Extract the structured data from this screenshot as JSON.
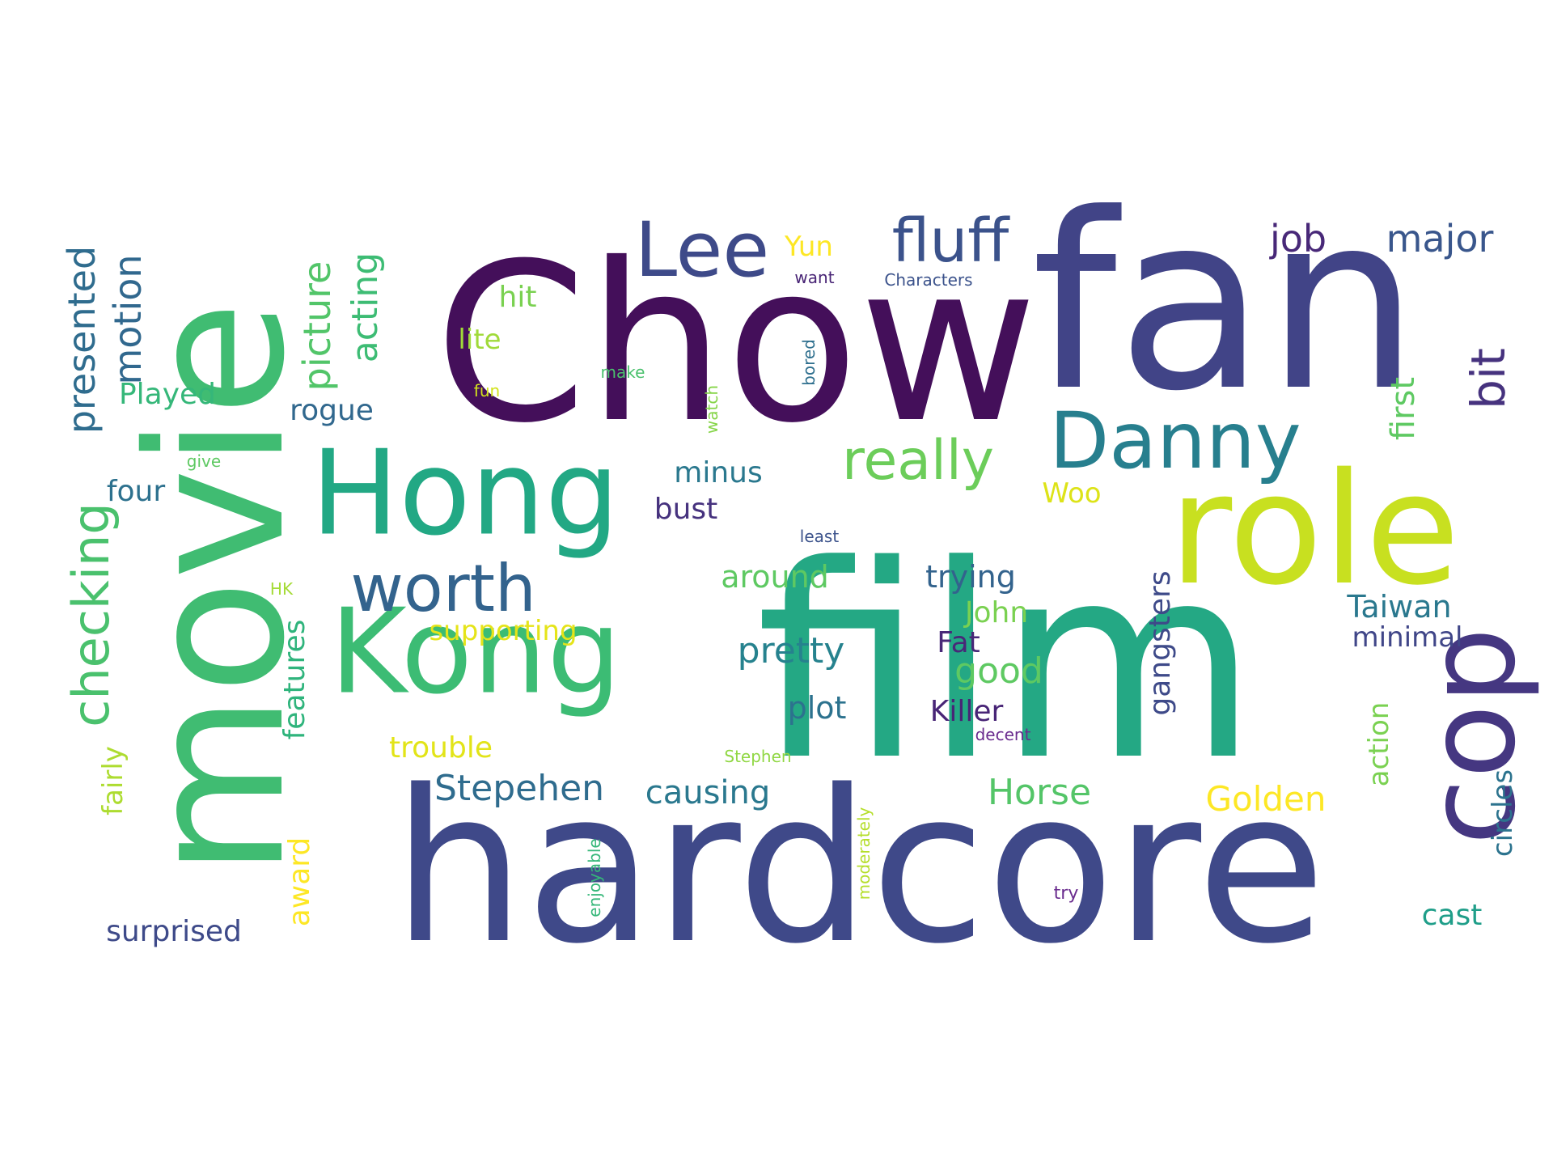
{
  "words": [
    {
      "text": "Chow",
      "color": "#440f5a",
      "rotated": false
    },
    {
      "text": "fan",
      "color": "#414487",
      "rotated": false
    },
    {
      "text": "film",
      "color": "#24a884",
      "rotated": false
    },
    {
      "text": "hardcore",
      "color": "#3f4989",
      "rotated": false
    },
    {
      "text": "movie",
      "color": "#40bc72",
      "rotated": true
    },
    {
      "text": "Hong",
      "color": "#22a884",
      "rotated": false
    },
    {
      "text": "Kong",
      "color": "#3cbc74",
      "rotated": false
    },
    {
      "text": "role",
      "color": "#c8e020",
      "rotated": false
    },
    {
      "text": "cop",
      "color": "#453781",
      "rotated": true
    },
    {
      "text": "Danny",
      "color": "#277f8e",
      "rotated": false
    },
    {
      "text": "Lee",
      "color": "#3e4a89",
      "rotated": false
    },
    {
      "text": "fluff",
      "color": "#3b528b",
      "rotated": false
    },
    {
      "text": "really",
      "color": "#6ccd5a",
      "rotated": false
    },
    {
      "text": "worth",
      "color": "#33638d",
      "rotated": false
    },
    {
      "text": "checking",
      "color": "#4ac16d",
      "rotated": true
    },
    {
      "text": "bit",
      "color": "#46327e",
      "rotated": true
    },
    {
      "text": "job",
      "color": "#482878",
      "rotated": false
    },
    {
      "text": "major",
      "color": "#39568c",
      "rotated": false
    },
    {
      "text": "presented",
      "color": "#2f6c8e",
      "rotated": true
    },
    {
      "text": "motion",
      "color": "#31688e",
      "rotated": true
    },
    {
      "text": "picture",
      "color": "#52c569",
      "rotated": true
    },
    {
      "text": "acting",
      "color": "#3dbc74",
      "rotated": true
    },
    {
      "text": "Yun",
      "color": "#fde725",
      "rotated": false
    },
    {
      "text": "want",
      "color": "#482475",
      "rotated": false
    },
    {
      "text": "Characters",
      "color": "#3b528b",
      "rotated": false
    },
    {
      "text": "hit",
      "color": "#7ad151",
      "rotated": false
    },
    {
      "text": "lite",
      "color": "#a0da39",
      "rotated": false
    },
    {
      "text": "Played",
      "color": "#35b779",
      "rotated": false
    },
    {
      "text": "rogue",
      "color": "#31688e",
      "rotated": false
    },
    {
      "text": "fun",
      "color": "#d2e21b",
      "rotated": false
    },
    {
      "text": "make",
      "color": "#4ac16d",
      "rotated": false
    },
    {
      "text": "watch",
      "color": "#86d549",
      "rotated": true
    },
    {
      "text": "bored",
      "color": "#2e6f8e",
      "rotated": true
    },
    {
      "text": "give",
      "color": "#5ec962",
      "rotated": false
    },
    {
      "text": "first",
      "color": "#5ec962",
      "rotated": true
    },
    {
      "text": "minus",
      "color": "#2a788e",
      "rotated": false
    },
    {
      "text": "four",
      "color": "#2d718e",
      "rotated": false
    },
    {
      "text": "Woo",
      "color": "#dde318",
      "rotated": false
    },
    {
      "text": "bust",
      "color": "#46327e",
      "rotated": false
    },
    {
      "text": "least",
      "color": "#3b528b",
      "rotated": false
    },
    {
      "text": "around",
      "color": "#5ec962",
      "rotated": false
    },
    {
      "text": "trying",
      "color": "#33638d",
      "rotated": false
    },
    {
      "text": "gangsters",
      "color": "#3e4a89",
      "rotated": true
    },
    {
      "text": "Taiwan",
      "color": "#2a788e",
      "rotated": false
    },
    {
      "text": "minimal",
      "color": "#404688",
      "rotated": false
    },
    {
      "text": "HK",
      "color": "#a5db36",
      "rotated": false
    },
    {
      "text": "supporting",
      "color": "#e5e419",
      "rotated": false
    },
    {
      "text": "John",
      "color": "#7ad151",
      "rotated": false
    },
    {
      "text": "features",
      "color": "#2fb47c",
      "rotated": true
    },
    {
      "text": "pretty",
      "color": "#26828e",
      "rotated": false
    },
    {
      "text": "Fat",
      "color": "#482878",
      "rotated": false
    },
    {
      "text": "good",
      "color": "#5ec962",
      "rotated": false
    },
    {
      "text": "fairly",
      "color": "#addc30",
      "rotated": true
    },
    {
      "text": "plot",
      "color": "#2c728e",
      "rotated": false
    },
    {
      "text": "Killer",
      "color": "#482576",
      "rotated": false
    },
    {
      "text": "trouble",
      "color": "#e2e418",
      "rotated": false
    },
    {
      "text": "Stephen",
      "color": "#90d743",
      "rotated": false
    },
    {
      "text": "decent",
      "color": "#6a2c8e",
      "rotated": false
    },
    {
      "text": "action",
      "color": "#7ad151",
      "rotated": true
    },
    {
      "text": "circles",
      "color": "#2c738e",
      "rotated": true
    },
    {
      "text": "Stepehen",
      "color": "#2f6c8e",
      "rotated": false
    },
    {
      "text": "causing",
      "color": "#2a788e",
      "rotated": false
    },
    {
      "text": "Horse",
      "color": "#54c568",
      "rotated": false
    },
    {
      "text": "Golden",
      "color": "#fde725",
      "rotated": false
    },
    {
      "text": "award",
      "color": "#fde725",
      "rotated": true
    },
    {
      "text": "moderately",
      "color": "#b5de2b",
      "rotated": true
    },
    {
      "text": "enjoyable",
      "color": "#35b779",
      "rotated": true
    },
    {
      "text": "try",
      "color": "#6a2c8e",
      "rotated": false
    },
    {
      "text": "surprised",
      "color": "#3e4a89",
      "rotated": false
    },
    {
      "text": "cast",
      "color": "#1f9e89",
      "rotated": false
    }
  ]
}
